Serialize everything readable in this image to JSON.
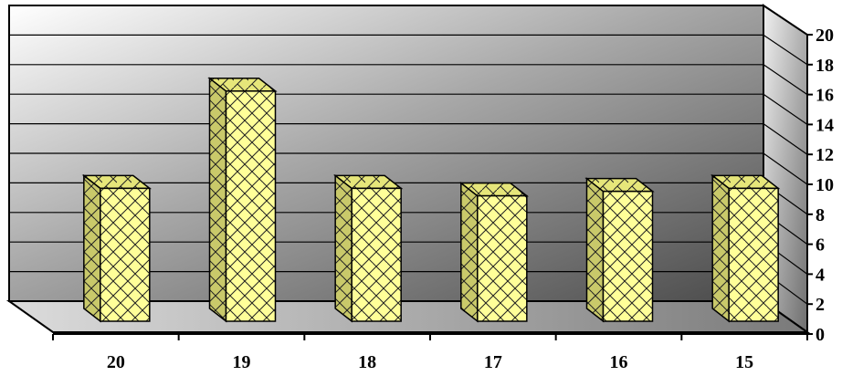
{
  "chart_data": {
    "type": "bar",
    "style": "3d",
    "categories": [
      "20",
      "19",
      "18",
      "17",
      "16",
      "15"
    ],
    "values": [
      9,
      15.5,
      9,
      8.5,
      8.8,
      9
    ],
    "ylim": [
      0,
      20
    ],
    "yticks": [
      "0",
      "2",
      "4",
      "6",
      "8",
      "10",
      "12",
      "14",
      "16",
      "18",
      "20"
    ],
    "y_axis_side": "right",
    "grid": true,
    "legend": "none",
    "bar_color": "#ffff99",
    "bar_pattern": "diagonal-brick",
    "wall_gradient": [
      "#ffffff",
      "#4d4d4d"
    ]
  }
}
